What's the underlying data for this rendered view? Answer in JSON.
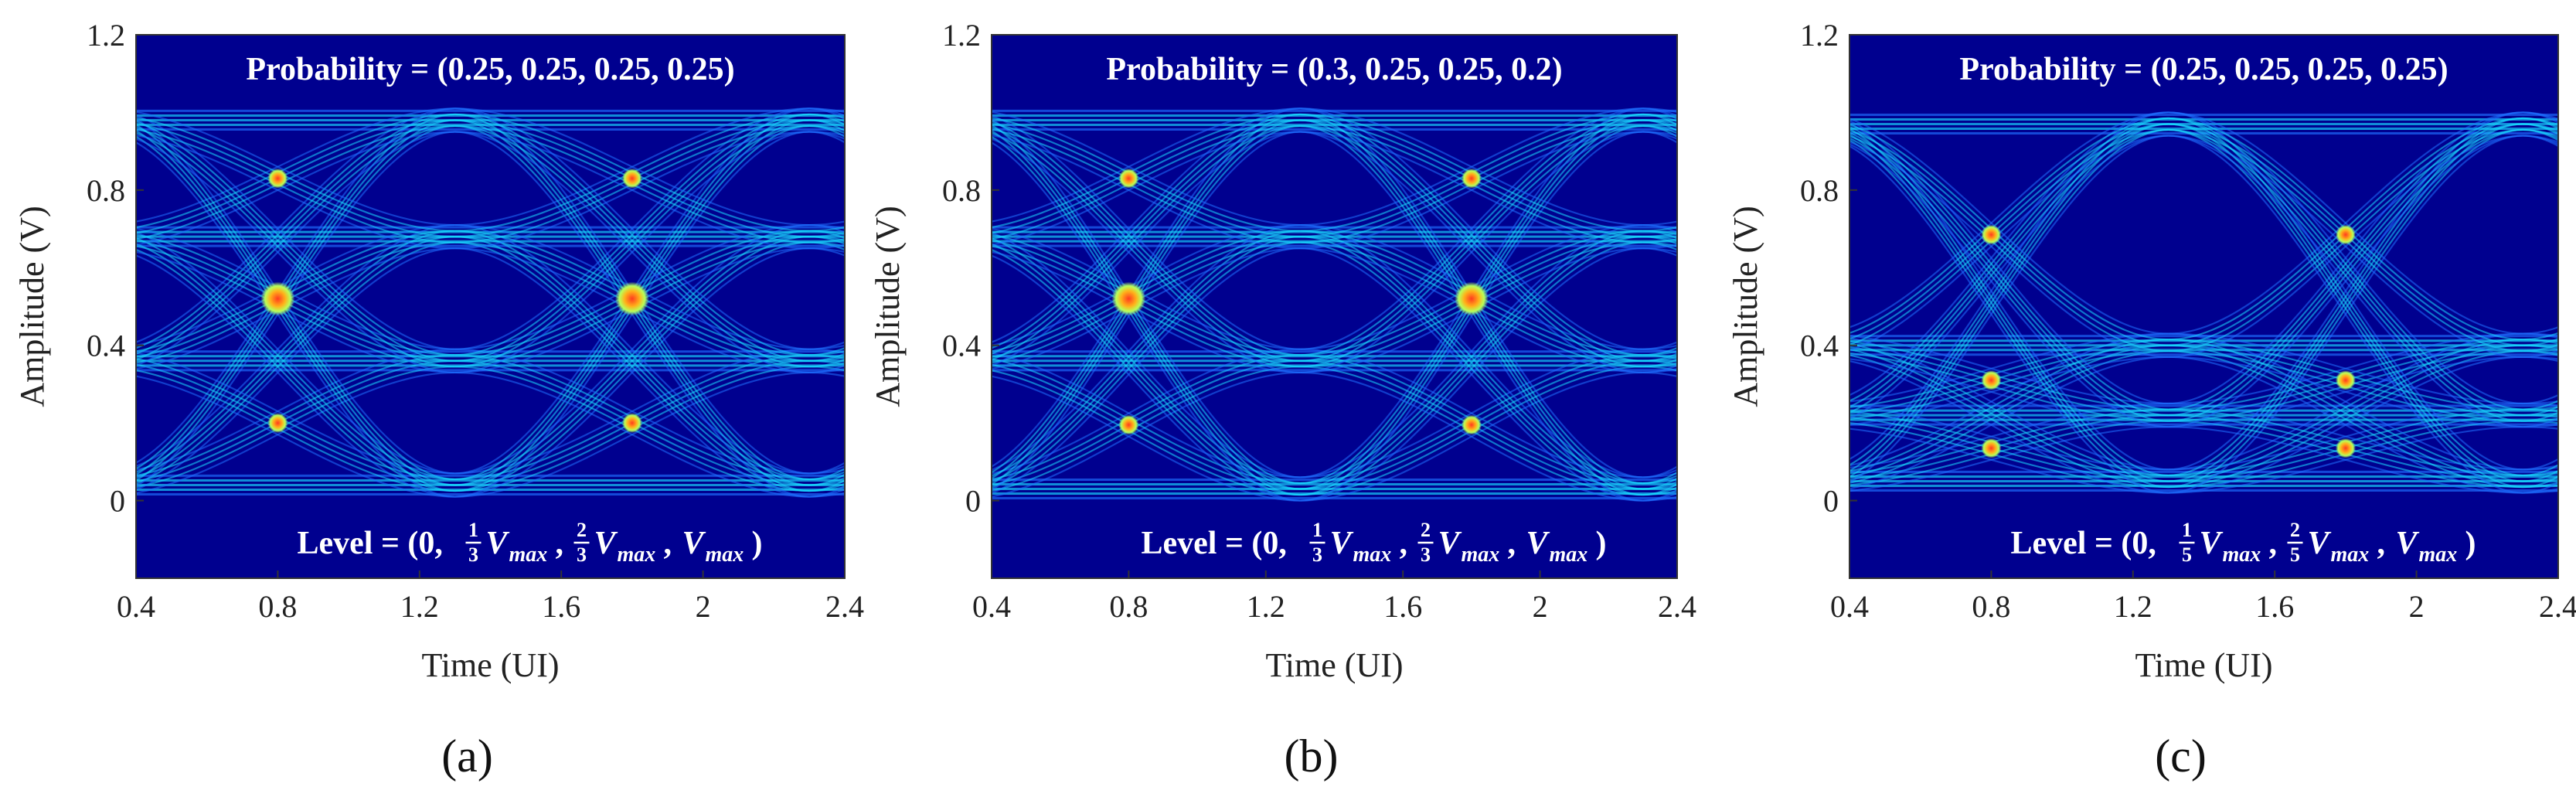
{
  "chart_data": [
    {
      "type": "heatmap",
      "panel_label": "(a)",
      "xlabel": "Time (UI)",
      "ylabel": "Amplitude (V)",
      "xlim": [
        0.4,
        2.4
      ],
      "ylim": [
        -0.2,
        1.2
      ],
      "xticks": [
        0.4,
        0.8,
        1.2,
        1.6,
        2,
        2.4
      ],
      "yticks": [
        0,
        0.4,
        0.8,
        1.2
      ],
      "xtick_labels": [
        "0.4",
        "0.8",
        "1.2",
        "1.6",
        "2",
        "2.4"
      ],
      "ytick_labels": [
        "0",
        "0.4",
        "0.8",
        "1.2"
      ],
      "probability_text": "Probability = (0.25, 0.25, 0.25, 0.25)",
      "probability": [
        0.25,
        0.25,
        0.25,
        0.25
      ],
      "level_prefix": "Level = (0, ",
      "level_fraction_1": {
        "num": "1",
        "den": "3"
      },
      "level_fraction_2": {
        "num": "2",
        "den": "3"
      },
      "level_var": "V",
      "level_sub": "max",
      "levels": [
        0.0,
        0.3333,
        0.6667,
        1.0
      ],
      "amplitude_bands": [
        0.04,
        0.36,
        0.68,
        0.98
      ],
      "crossing_times": [
        0.8,
        1.8
      ]
    },
    {
      "type": "heatmap",
      "panel_label": "(b)",
      "xlabel": "Time (UI)",
      "ylabel": "Amplitude (V)",
      "xlim": [
        0.4,
        2.4
      ],
      "ylim": [
        -0.2,
        1.2
      ],
      "xticks": [
        0.4,
        0.8,
        1.2,
        1.6,
        2,
        2.4
      ],
      "yticks": [
        0,
        0.4,
        0.8,
        1.2
      ],
      "xtick_labels": [
        "0.4",
        "0.8",
        "1.2",
        "1.6",
        "2",
        "2.4"
      ],
      "ytick_labels": [
        "0",
        "0.4",
        "0.8",
        "1.2"
      ],
      "probability_text": "Probability = (0.3, 0.25, 0.25, 0.2)",
      "probability": [
        0.3,
        0.25,
        0.25,
        0.2
      ],
      "level_prefix": "Level = (0, ",
      "level_fraction_1": {
        "num": "1",
        "den": "3"
      },
      "level_fraction_2": {
        "num": "2",
        "den": "3"
      },
      "level_var": "V",
      "level_sub": "max",
      "levels": [
        0.0,
        0.3333,
        0.6667,
        1.0
      ],
      "amplitude_bands": [
        0.03,
        0.36,
        0.68,
        0.98
      ],
      "crossing_times": [
        0.8,
        1.8
      ]
    },
    {
      "type": "heatmap",
      "panel_label": "(c)",
      "xlabel": "Time (UI)",
      "ylabel": "Amplitude (V)",
      "xlim": [
        0.4,
        2.4
      ],
      "ylim": [
        -0.2,
        1.2
      ],
      "xticks": [
        0.4,
        0.8,
        1.2,
        1.6,
        2,
        2.4
      ],
      "yticks": [
        0,
        0.4,
        0.8,
        1.2
      ],
      "xtick_labels": [
        "0.4",
        "0.8",
        "1.2",
        "1.6",
        "2",
        "2.4"
      ],
      "ytick_labels": [
        "0",
        "0.4",
        "0.8",
        "1.2"
      ],
      "probability_text": "Probability = (0.25, 0.25, 0.25, 0.25)",
      "probability": [
        0.25,
        0.25,
        0.25,
        0.25
      ],
      "level_prefix": "Level = (0, ",
      "level_fraction_1": {
        "num": "1",
        "den": "5"
      },
      "level_fraction_2": {
        "num": "2",
        "den": "5"
      },
      "level_var": "V",
      "level_sub": "max",
      "levels": [
        0.0,
        0.2,
        0.4,
        1.0
      ],
      "amplitude_bands": [
        0.05,
        0.22,
        0.4,
        0.97
      ],
      "crossing_times": [
        0.8,
        1.8
      ]
    }
  ],
  "colors": {
    "background": "#00008f",
    "trace_low": "#1f6fff",
    "trace_mid": "#19d9ff",
    "trace_high": "#b8ff5a",
    "hot": "#ff3b1f",
    "annotation_text": "#ffffff"
  }
}
